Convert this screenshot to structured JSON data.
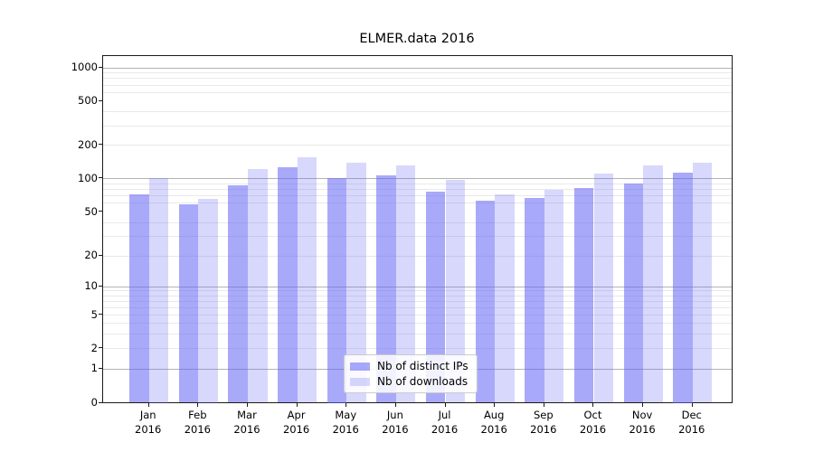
{
  "chart_data": {
    "type": "bar",
    "title": "ELMER.data 2016",
    "categories": [
      "Jan 2016",
      "Feb 2016",
      "Mar 2016",
      "Apr 2016",
      "May 2016",
      "Jun 2016",
      "Jul 2016",
      "Aug 2016",
      "Sep 2016",
      "Oct 2016",
      "Nov 2016",
      "Dec 2016"
    ],
    "series": [
      {
        "name": "Nb of distinct IPs",
        "color": "rgba(98,98,245,0.55)",
        "values": [
          71,
          58,
          86,
          125,
          100,
          106,
          76,
          63,
          66,
          81,
          90,
          112
        ]
      },
      {
        "name": "Nb of downloads",
        "color": "rgba(98,98,245,0.25)",
        "values": [
          100,
          65,
          120,
          155,
          137,
          131,
          97,
          71,
          79,
          110,
          131,
          137
        ]
      }
    ],
    "xlabel": "",
    "ylabel": "",
    "yscale": "symlog",
    "ylim": [
      0,
      1000
    ],
    "ytick_labels": [
      "0",
      "1",
      "2",
      "5",
      "10",
      "20",
      "50",
      "100",
      "200",
      "500",
      "1000"
    ],
    "yticks": [
      0,
      1,
      2,
      5,
      10,
      20,
      50,
      100,
      200,
      500,
      1000
    ],
    "grid": "horizontal major and minor",
    "legend_position": "lower center",
    "colors": {
      "major_grid": "#b3b3b3",
      "minor_grid": "#e9e9e9",
      "spine": "#1a1a1a",
      "background": "#ffffff"
    }
  }
}
